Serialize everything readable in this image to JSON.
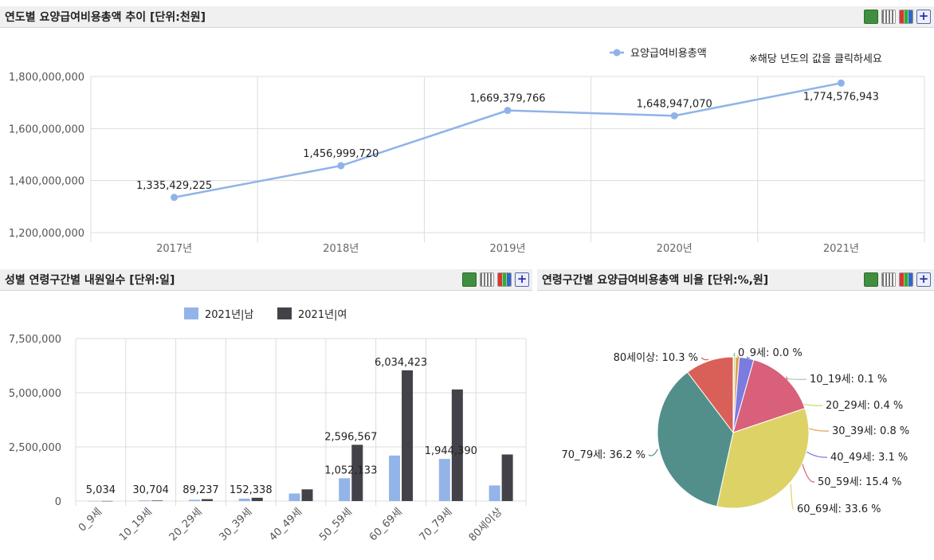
{
  "panel1": {
    "title": "연도별 요양급여비용총액 추이 [단위:천원]",
    "note": "※해당 년도의 값을 클릭하세요",
    "tools": [
      "excel-icon",
      "grid-icon",
      "chart-icon",
      "plus-icon"
    ]
  },
  "panel2": {
    "title": "성별 연령구간별 내원일수 [단위:일]",
    "tools": [
      "excel-icon",
      "grid-icon",
      "chart-icon",
      "plus-icon"
    ]
  },
  "panel3": {
    "title": "연령구간별 요양급여비용총액 비율 [단위:%,원]",
    "tools": [
      "excel-icon",
      "grid-icon",
      "chart-icon",
      "plus-icon"
    ]
  },
  "colors": {
    "line": "#8fb3e8",
    "male": "#92b4e8",
    "female": "#424248",
    "grid": "#dcdcdc"
  },
  "chart_data": [
    {
      "type": "line",
      "categories": [
        "2017년",
        "2018년",
        "2019년",
        "2020년",
        "2021년"
      ],
      "series": [
        {
          "name": "요양급여비용총액",
          "values": [
            1335429225,
            1456999720,
            1669379766,
            1648947070,
            1774576943
          ]
        }
      ],
      "data_labels": [
        "1,335,429,225",
        "1,456,999,720",
        "1,669,379,766",
        "1,648,947,070",
        "1,774,576,943"
      ],
      "yticks": [
        "1,200,000,000",
        "1,400,000,000",
        "1,600,000,000",
        "1,800,000,000"
      ],
      "ytick_values": [
        1200000000,
        1400000000,
        1600000000,
        1800000000
      ],
      "ylim": [
        1200000000,
        1800000000
      ],
      "legend": "top-right"
    },
    {
      "type": "bar",
      "categories": [
        "0_9세",
        "10_19세",
        "20_29세",
        "30_39세",
        "40_49세",
        "50_59세",
        "60_69세",
        "70_79세",
        "80세이상"
      ],
      "series": [
        {
          "name": "2021년|남",
          "values": [
            5034,
            30704,
            60000,
            110000,
            350000,
            1052133,
            2100000,
            1944390,
            720000
          ]
        },
        {
          "name": "2021년|여",
          "values": [
            4000,
            25000,
            89237,
            152338,
            540000,
            2596567,
            6034423,
            5150000,
            2150000
          ]
        }
      ],
      "data_labels": [
        {
          "text": "5,034",
          "category": 0,
          "value": 5034
        },
        {
          "text": "30,704",
          "category": 1,
          "value": 30704
        },
        {
          "text": "89,237",
          "category": 2,
          "value": 89237
        },
        {
          "text": "152,338",
          "category": 3,
          "value": 152338
        },
        {
          "text": "1,052,133",
          "category": 5,
          "value": 1052133
        },
        {
          "text": "2,596,567",
          "category": 5,
          "value": 2596567
        },
        {
          "text": "6,034,423",
          "category": 6,
          "value": 6034423
        },
        {
          "text": "1,944,390",
          "category": 7,
          "value": 1944390
        }
      ],
      "yticks": [
        "0",
        "2,500,000",
        "5,000,000",
        "7,500,000"
      ],
      "ytick_values": [
        0,
        2500000,
        5000000,
        7500000
      ],
      "ylim": [
        0,
        7500000
      ],
      "legend": "top"
    },
    {
      "type": "pie",
      "slices": [
        {
          "label": "0_9세: 0.0 %",
          "value": 0.0,
          "color": "#6fb5d9"
        },
        {
          "label": "10_19세: 0.1 %",
          "value": 0.1,
          "color": "#a0d0a0"
        },
        {
          "label": "20_29세: 0.4 %",
          "value": 0.4,
          "color": "#c8d86a"
        },
        {
          "label": "30_39세: 0.8 %",
          "value": 0.8,
          "color": "#e0a050"
        },
        {
          "label": "40_49세: 3.1 %",
          "value": 3.1,
          "color": "#7b7be0"
        },
        {
          "label": "50_59세: 15.4 %",
          "value": 15.4,
          "color": "#d8607a"
        },
        {
          "label": "60_69세: 33.6 %",
          "value": 33.6,
          "color": "#ddd266"
        },
        {
          "label": "70_79세: 36.2 %",
          "value": 36.2,
          "color": "#528f8a"
        },
        {
          "label": "80세이상: 10.3 %",
          "value": 10.3,
          "color": "#d96058"
        }
      ]
    }
  ]
}
